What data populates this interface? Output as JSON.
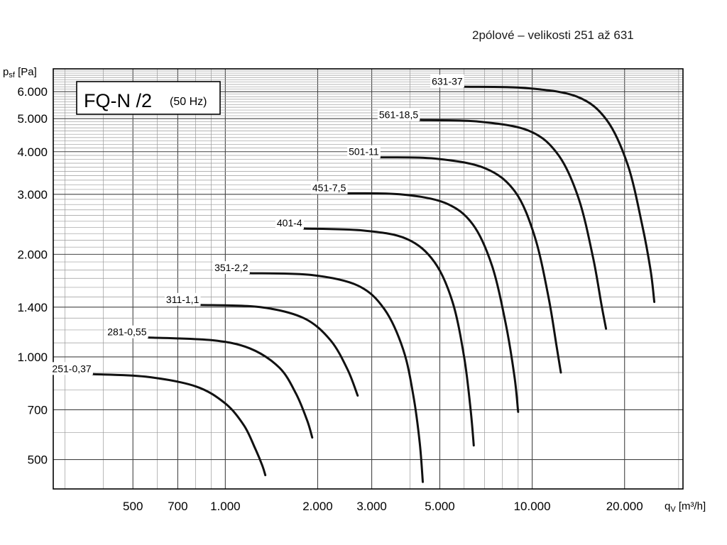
{
  "subtitle": "2pólové – velikosti 251 až 631",
  "chart_data": {
    "type": "line",
    "title": "FQ-N /2",
    "title_suffix": "(50 Hz)",
    "ylabel_main": "p",
    "ylabel_sub": "sf",
    "ylabel_unit": " [Pa]",
    "xlabel_main": "q",
    "xlabel_sub": "V",
    "xlabel_unit": " [m³/h]",
    "x_scale": "log",
    "y_scale": "log",
    "xlim": [
      275,
      31000
    ],
    "ylim": [
      410,
      7000
    ],
    "grid": true,
    "x_ticks": [
      {
        "value": 500,
        "label": "500"
      },
      {
        "value": 700,
        "label": "700"
      },
      {
        "value": 1000,
        "label": "1.000"
      },
      {
        "value": 2000,
        "label": "2.000"
      },
      {
        "value": 3000,
        "label": "3.000"
      },
      {
        "value": 5000,
        "label": "5.000"
      },
      {
        "value": 10000,
        "label": "10.000"
      },
      {
        "value": 20000,
        "label": "20.000"
      }
    ],
    "y_ticks": [
      {
        "value": 500,
        "label": "500"
      },
      {
        "value": 700,
        "label": "700"
      },
      {
        "value": 1000,
        "label": "1.000"
      },
      {
        "value": 1400,
        "label": "1.400"
      },
      {
        "value": 2000,
        "label": "2.000"
      },
      {
        "value": 3000,
        "label": "3.000"
      },
      {
        "value": 4000,
        "label": "4.000"
      },
      {
        "value": 5000,
        "label": "5.000"
      },
      {
        "value": 6000,
        "label": "6.000"
      }
    ],
    "series": [
      {
        "name": "251-0,37",
        "x": [
          370,
          550,
          800,
          1000,
          1150,
          1250,
          1320,
          1350
        ],
        "y": [
          890,
          875,
          820,
          730,
          630,
          540,
          480,
          450
        ]
      },
      {
        "name": "281-0,55",
        "x": [
          560,
          900,
          1200,
          1500,
          1700,
          1850,
          1920
        ],
        "y": [
          1140,
          1120,
          1060,
          930,
          780,
          650,
          580
        ]
      },
      {
        "name": "311-1,1",
        "x": [
          830,
          1300,
          1800,
          2200,
          2500,
          2700
        ],
        "y": [
          1420,
          1400,
          1300,
          1120,
          920,
          770
        ]
      },
      {
        "name": "351-2,2",
        "x": [
          1200,
          1900,
          2700,
          3300,
          3800,
          4100,
          4300,
          4400
        ],
        "y": [
          1760,
          1740,
          1620,
          1380,
          1050,
          770,
          560,
          430
        ]
      },
      {
        "name": "401-4",
        "x": [
          1800,
          2800,
          3900,
          4800,
          5500,
          6000,
          6300,
          6450
        ],
        "y": [
          2380,
          2350,
          2220,
          1900,
          1450,
          1000,
          700,
          550
        ]
      },
      {
        "name": "451-7,5",
        "x": [
          2500,
          3700,
          5200,
          6400,
          7400,
          8200,
          8750,
          9000
        ],
        "y": [
          3020,
          3000,
          2830,
          2450,
          1850,
          1250,
          880,
          690
        ]
      },
      {
        "name": "501-11",
        "x": [
          3200,
          4800,
          7000,
          8800,
          10200,
          11300,
          12000,
          12400
        ],
        "y": [
          3850,
          3820,
          3580,
          3050,
          2250,
          1500,
          1080,
          900
        ]
      },
      {
        "name": "561-18,5",
        "x": [
          4300,
          6700,
          9800,
          12200,
          14200,
          15800,
          16800,
          17400
        ],
        "y": [
          4950,
          4900,
          4600,
          3900,
          2900,
          1950,
          1430,
          1210
        ]
      },
      {
        "name": "631-37",
        "x": [
          6000,
          9500,
          14000,
          17500,
          20500,
          22800,
          24300,
          25000
        ],
        "y": [
          6200,
          6150,
          5800,
          4950,
          3650,
          2450,
          1800,
          1450
        ]
      }
    ]
  }
}
